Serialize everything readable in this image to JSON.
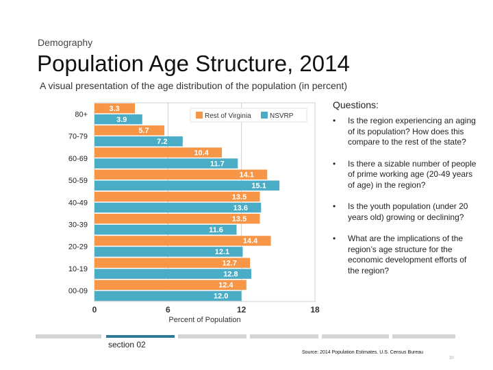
{
  "header": {
    "kicker": "Demography",
    "title": "Population Age Structure, 2014",
    "subtitle": "A visual presentation of the age distribution of the population (in percent)"
  },
  "chart_data": {
    "type": "bar",
    "orientation": "horizontal",
    "categories": [
      "80+",
      "70-79",
      "60-69",
      "50-59",
      "40-49",
      "30-39",
      "20-29",
      "10-19",
      "00-09"
    ],
    "series": [
      {
        "name": "Rest of Virginia",
        "color": "#f79646",
        "values": [
          3.3,
          5.7,
          10.4,
          14.1,
          13.5,
          13.5,
          14.4,
          12.7,
          12.4
        ]
      },
      {
        "name": "NSVRP",
        "color": "#4bacc6",
        "values": [
          3.9,
          7.2,
          11.7,
          15.1,
          13.6,
          11.6,
          12.1,
          12.8,
          12.0
        ]
      }
    ],
    "xlabel": "Percent of Population",
    "xticks": [
      0,
      6,
      12,
      18
    ],
    "xlim": [
      0,
      18
    ],
    "grid": true,
    "legend": "top-right"
  },
  "questions": {
    "heading": "Questions:",
    "items": [
      "Is the region experiencing an aging of its population? How does this compare to the rest of the state?",
      "Is there a sizable number of people of prime working age (20-49 years of age) in the region?",
      "Is the youth population (under 20 years old) growing or declining?",
      "What are the implications of the region’s age structure for the economic development efforts of the region?"
    ]
  },
  "footer": {
    "section": "section 02",
    "source": "Source: 2014 Population Estimates. U.S. Census Bureau",
    "page": "30"
  }
}
